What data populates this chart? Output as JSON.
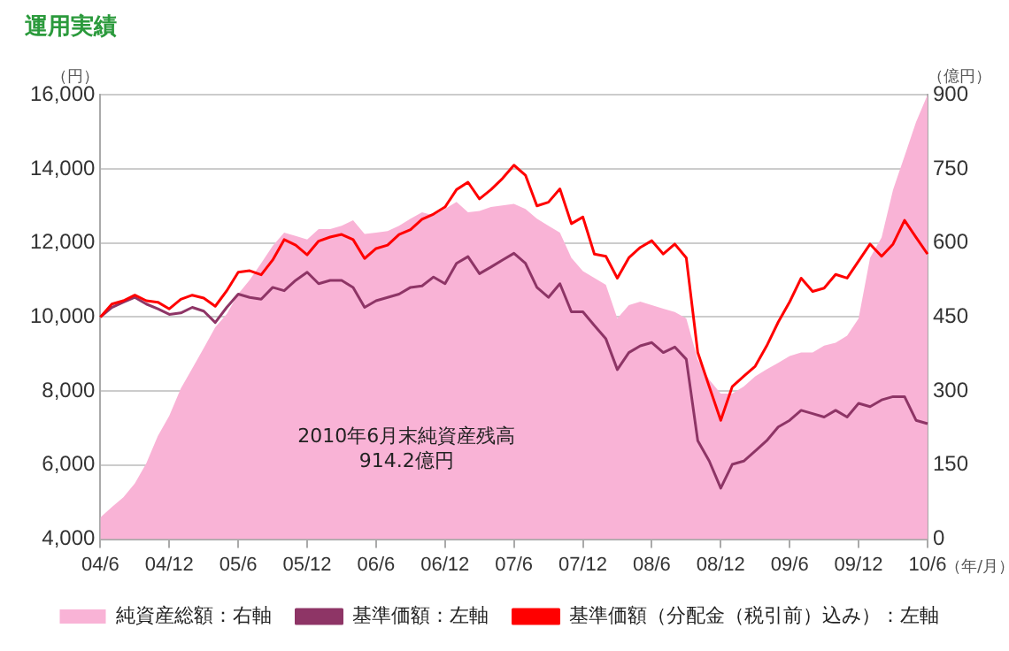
{
  "chart_data": {
    "type": "line",
    "title": "運用実績",
    "xlabel": "（年/月）",
    "ylabel": "（円）",
    "y2label": "（億円）",
    "categories": [
      "04/6",
      null,
      null,
      null,
      null,
      null,
      "04/12",
      null,
      null,
      null,
      null,
      null,
      "05/6",
      null,
      null,
      null,
      null,
      null,
      "05/12",
      null,
      null,
      null,
      null,
      null,
      "06/6",
      null,
      null,
      null,
      null,
      null,
      "06/12",
      null,
      null,
      null,
      null,
      null,
      "07/6",
      null,
      null,
      null,
      null,
      null,
      "07/12",
      null,
      null,
      null,
      null,
      null,
      "08/6",
      null,
      null,
      null,
      null,
      null,
      "08/12",
      null,
      null,
      null,
      null,
      null,
      "09/6",
      null,
      null,
      null,
      null,
      null,
      "09/12",
      null,
      null,
      null,
      null,
      null,
      "10/6"
    ],
    "series": [
      {
        "name": "純資産総額：右軸",
        "type": "area",
        "axis": "y2",
        "color": "#f9b3d6",
        "values": [
          44,
          65,
          85,
          113,
          154,
          209,
          250,
          305,
          346,
          387,
          429,
          456,
          497,
          525,
          559,
          594,
          621,
          614,
          607,
          628,
          628,
          635,
          646,
          618,
          621,
          624,
          635,
          649,
          662,
          656,
          669,
          683,
          662,
          665,
          673,
          676,
          679,
          669,
          649,
          635,
          621,
          570,
          543,
          529,
          515,
          447,
          474,
          481,
          474,
          467,
          460,
          447,
          364,
          323,
          295,
          295,
          309,
          330,
          344,
          357,
          371,
          378,
          378,
          392,
          398,
          412,
          447,
          570,
          611,
          708,
          776,
          845,
          900
        ]
      },
      {
        "name": "基準価額：左軸",
        "color": "#8e3566",
        "values": [
          10000,
          10260,
          10400,
          10530,
          10350,
          10220,
          10070,
          10110,
          10260,
          10160,
          9850,
          10260,
          10620,
          10530,
          10480,
          10800,
          10710,
          10990,
          11210,
          10900,
          10990,
          10990,
          10800,
          10260,
          10440,
          10530,
          10620,
          10800,
          10840,
          11080,
          10900,
          11450,
          11630,
          11170,
          11350,
          11540,
          11720,
          11450,
          10800,
          10530,
          10900,
          10140,
          10140,
          9770,
          9410,
          8580,
          9040,
          9220,
          9310,
          9040,
          9190,
          8860,
          6660,
          6110,
          5380,
          6020,
          6110,
          6380,
          6660,
          7030,
          7210,
          7480,
          7390,
          7300,
          7480,
          7300,
          7670,
          7580,
          7760,
          7850,
          7850,
          7210,
          7120
        ]
      },
      {
        "name": "基準価額（分配金（税引前）込み）：左軸",
        "color": "#ff0000",
        "values": [
          10000,
          10350,
          10440,
          10590,
          10440,
          10400,
          10220,
          10480,
          10590,
          10510,
          10290,
          10710,
          11210,
          11250,
          11140,
          11540,
          12090,
          11940,
          11680,
          12050,
          12160,
          12230,
          12090,
          11580,
          11850,
          11940,
          12230,
          12360,
          12640,
          12780,
          12970,
          13440,
          13640,
          13190,
          13440,
          13740,
          14100,
          13830,
          13000,
          13100,
          13460,
          12520,
          12700,
          11700,
          11640,
          11050,
          11600,
          11880,
          12060,
          11700,
          11970,
          11600,
          9040,
          8120,
          7210,
          8120,
          8400,
          8670,
          9220,
          9860,
          10410,
          11050,
          10690,
          10780,
          11150,
          11050,
          11510,
          11970,
          11640,
          11970,
          12610,
          12150,
          11700
        ]
      }
    ],
    "ylim": [
      4000,
      16000
    ],
    "yticks": [
      {
        "value": 4000,
        "label": "4,000"
      },
      {
        "value": 6000,
        "label": "6,000"
      },
      {
        "value": 8000,
        "label": "8,000"
      },
      {
        "value": 10000,
        "label": "10,000"
      },
      {
        "value": 12000,
        "label": "12,000"
      },
      {
        "value": 14000,
        "label": "14,000"
      },
      {
        "value": 16000,
        "label": "16,000"
      }
    ],
    "y2lim": [
      0,
      900
    ],
    "y2ticks": [
      0,
      150,
      300,
      450,
      600,
      750,
      900
    ],
    "grid": "y",
    "legend": "bottom",
    "marker": "none",
    "line_style": "solid",
    "annotations": [
      "2010年6月末純資産残高\n914.2億円"
    ]
  }
}
